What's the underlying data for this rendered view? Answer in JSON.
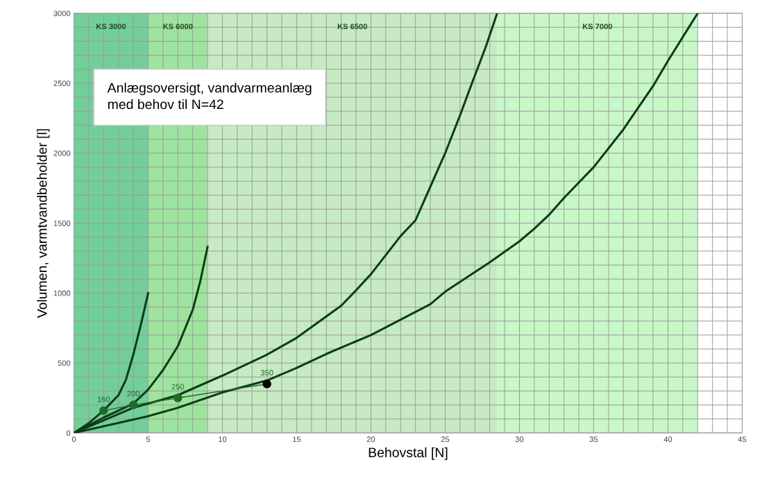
{
  "chart_data": {
    "type": "line",
    "xlabel": "Behovstal [N]",
    "ylabel": "Volumen, varmtvandbeholder [l]",
    "xlim": [
      0,
      45
    ],
    "ylim": [
      0,
      3000
    ],
    "xticks": [
      0,
      5,
      10,
      15,
      20,
      25,
      30,
      35,
      40,
      45
    ],
    "yticks": [
      0,
      500,
      1000,
      1500,
      2000,
      2500,
      3000
    ],
    "grid": true,
    "marker": "none",
    "line_style": "solid",
    "series": [
      {
        "color": "#0b3d14",
        "x": [
          0,
          1,
          2,
          3,
          3.5,
          4,
          4.5,
          5
        ],
        "values": [
          0,
          70,
          160,
          270,
          380,
          560,
          770,
          1000
        ]
      },
      {
        "color": "#0b3d14",
        "x": [
          0,
          2,
          4,
          5,
          6,
          7,
          8,
          8.5,
          9
        ],
        "values": [
          0,
          110,
          210,
          310,
          450,
          620,
          880,
          1080,
          1330
        ]
      },
      {
        "color": "#0b3d14",
        "x": [
          0,
          4,
          7,
          10,
          13,
          15,
          18,
          19,
          20,
          22,
          23,
          24,
          25,
          26,
          26.8,
          27.7,
          28.5
        ],
        "values": [
          0,
          180,
          270,
          410,
          560,
          680,
          910,
          1020,
          1135,
          1408,
          1520,
          1760,
          2000,
          2270,
          2500,
          2750,
          3000
        ]
      },
      {
        "color": "#0b3d14",
        "x": [
          0,
          5,
          7,
          10,
          13,
          15,
          17,
          20,
          22,
          24,
          25,
          28,
          30,
          31,
          32,
          33,
          35,
          37,
          39,
          40,
          41,
          42
        ],
        "values": [
          0,
          120,
          180,
          290,
          375,
          465,
          565,
          700,
          810,
          920,
          1010,
          1220,
          1370,
          1460,
          1560,
          1680,
          1900,
          2170,
          2480,
          2660,
          2830,
          3000
        ]
      },
      {
        "type": "line",
        "marker": "circle",
        "color": "#1f6b2a",
        "colors": [
          "#1f6b2a",
          "#1f6b2a",
          "#1f6b2a",
          "#000000"
        ],
        "x": [
          2,
          4,
          7,
          13
        ],
        "values": [
          160,
          200,
          250,
          350
        ],
        "value_labels": [
          "160",
          "200",
          "250",
          "350"
        ]
      }
    ],
    "bands": [
      {
        "axis": "x",
        "from": 0,
        "to": 5,
        "color": "#72cf9a",
        "label": "KS 3000"
      },
      {
        "axis": "x",
        "from": 5,
        "to": 9,
        "color": "#9ee39e",
        "label": "KS 6000"
      },
      {
        "axis": "x",
        "from": 9,
        "to": 28.5,
        "color": "#c6eac2",
        "label": "KS 6500"
      },
      {
        "axis": "x",
        "from": 28.5,
        "to": 42,
        "color": "#c8f7c8",
        "label": "KS 7000"
      }
    ],
    "annotations": [
      "Anlægsoversigt, vandvarmeanlæg\nmed behov til N=42"
    ]
  }
}
